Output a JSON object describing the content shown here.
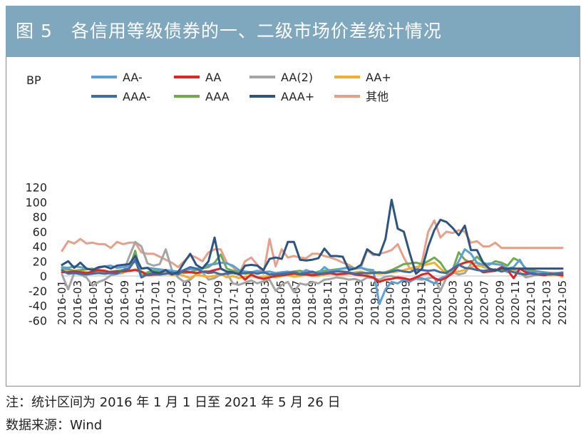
{
  "banner": {
    "figure_label": "图 5",
    "title": "各信用等级债券的一、二级市场价差统计情况"
  },
  "notes": {
    "note": "注：统计区间为 2016 年 1 月 1 日至 2021 年 5 月 26 日",
    "source": "数据来源：Wind"
  },
  "chart_data": {
    "type": "line",
    "title": "各信用等级债券的一、二级市场价差统计情况",
    "ylabel": "BP",
    "xlabel": "",
    "ylim": [
      -60,
      120
    ],
    "yticks": [
      120,
      100,
      80,
      60,
      40,
      20,
      0,
      -20,
      -40,
      -60
    ],
    "grid": false,
    "legend_position": "top",
    "x_tick_labels": [
      "2016-01",
      "2016-03",
      "2016-05",
      "2016-07",
      "2016-09",
      "2016-11",
      "2017-01",
      "2017-03",
      "2017-05",
      "2017-07",
      "2017-09",
      "2017-11",
      "2018-01",
      "2018-03",
      "2018-05",
      "2018-07",
      "2018-09",
      "2018-11",
      "2019-01",
      "2019-03",
      "2019-05",
      "2019-07",
      "2019-09",
      "2019-11",
      "2020-01",
      "2020-03",
      "2020-05",
      "2020-07",
      "2020-09",
      "2020-11",
      "2021-01",
      "2021-03",
      "2021-05"
    ],
    "series": [
      {
        "name": "AA-",
        "color": "#5aa0d2",
        "values": [
          12,
          11,
          13,
          12,
          10,
          8,
          11,
          13,
          14,
          11,
          12,
          13,
          20,
          10,
          11,
          10,
          9,
          8,
          7,
          6,
          8,
          9,
          10,
          11,
          15,
          16,
          18,
          17,
          14,
          8,
          6,
          5,
          7,
          5,
          6,
          4,
          5,
          6,
          4,
          3,
          8,
          5,
          4,
          12,
          6,
          8,
          10,
          11,
          10,
          11,
          9,
          8,
          -38,
          -18,
          -8,
          -10,
          -5,
          -8,
          -2,
          -3,
          -6,
          -10,
          -3,
          0,
          5,
          20,
          36,
          30,
          18,
          15,
          17,
          16,
          15,
          10,
          12,
          22,
          8,
          5,
          6,
          5,
          4,
          3,
          2
        ]
      },
      {
        "name": "AA",
        "color": "#e02424",
        "values": [
          5,
          5,
          6,
          5,
          4,
          6,
          8,
          7,
          5,
          6,
          6,
          7,
          8,
          6,
          1,
          2,
          2,
          3,
          4,
          4,
          6,
          5,
          4,
          6,
          6,
          8,
          10,
          6,
          4,
          3,
          -5,
          2,
          -2,
          -4,
          -2,
          0,
          1,
          2,
          3,
          2,
          2,
          1,
          2,
          3,
          4,
          2,
          3,
          4,
          2,
          1,
          0,
          -2,
          -8,
          -5,
          -4,
          -2,
          -3,
          -5,
          -2,
          2,
          4,
          -3,
          -6,
          -2,
          4,
          15,
          18,
          20,
          10,
          5,
          6,
          7,
          12,
          8,
          -3,
          10,
          5,
          3,
          2,
          1,
          3,
          2,
          1
        ]
      },
      {
        "name": "AA(2)",
        "color": "#a5a5a5",
        "values": [
          2,
          -18,
          4,
          2,
          -2,
          -13,
          -8,
          -5,
          1,
          3,
          4,
          26,
          46,
          40,
          17,
          14,
          16,
          36,
          8,
          -2,
          -8,
          -5,
          2,
          5,
          -5,
          -3,
          2,
          4,
          -10,
          -12,
          -9,
          -6,
          -10,
          -7,
          -5,
          -20,
          -12,
          -8,
          -22,
          -10,
          -12,
          -8,
          -10,
          -5,
          -4,
          -2,
          -3,
          -5,
          -4,
          -7,
          -2,
          -3,
          -5,
          -1,
          0,
          -3,
          -5,
          -7,
          -4,
          -5,
          -3,
          -2,
          -20,
          -2,
          5,
          2,
          4,
          16,
          18,
          12,
          10,
          8,
          9,
          5,
          8,
          5,
          -2,
          0,
          2,
          3,
          3,
          4,
          5
        ]
      },
      {
        "name": "AA+",
        "color": "#f0b02c",
        "values": [
          8,
          6,
          5,
          6,
          5,
          4,
          5,
          6,
          4,
          5,
          5,
          7,
          9,
          6,
          3,
          4,
          4,
          5,
          1,
          3,
          0,
          -3,
          2,
          0,
          -1,
          0,
          3,
          -2,
          0,
          -3,
          -1,
          0,
          -2,
          -1,
          0,
          -2,
          0,
          1,
          -1,
          0,
          2,
          0,
          0,
          2,
          3,
          2,
          2,
          3,
          5,
          6,
          3,
          4,
          3,
          4,
          5,
          6,
          8,
          10,
          12,
          14,
          16,
          18,
          10,
          3,
          5,
          6,
          8,
          12,
          14,
          13,
          10,
          8,
          9,
          10,
          6,
          4,
          2,
          3,
          3,
          2,
          1,
          2,
          -1
        ]
      },
      {
        "name": "AAA-",
        "color": "#3f6ea6",
        "values": [
          8,
          3,
          4,
          3,
          2,
          3,
          4,
          3,
          4,
          3,
          8,
          10,
          22,
          -2,
          2,
          4,
          2,
          3,
          5,
          2,
          8,
          12,
          10,
          6,
          4,
          5,
          2,
          3,
          4,
          3,
          4,
          5,
          3,
          5,
          2,
          2,
          3,
          4,
          5,
          3,
          4,
          6,
          3,
          4,
          5,
          6,
          6,
          5,
          3,
          4,
          4,
          4,
          5,
          4,
          6,
          8,
          6,
          5,
          9,
          8,
          7,
          8,
          5,
          4,
          10,
          15,
          11,
          10,
          8,
          7,
          8,
          9,
          6,
          8,
          5,
          3,
          2,
          4,
          2,
          3,
          2,
          3,
          4
        ]
      },
      {
        "name": "AAA",
        "color": "#70a94e",
        "values": [
          11,
          9,
          7,
          8,
          9,
          10,
          7,
          5,
          6,
          7,
          8,
          10,
          34,
          0,
          5,
          7,
          6,
          8,
          3,
          6,
          4,
          5,
          8,
          10,
          12,
          18,
          29,
          10,
          7,
          6,
          3,
          4,
          5,
          6,
          2,
          4,
          3,
          5,
          6,
          7,
          5,
          3,
          6,
          7,
          8,
          9,
          10,
          12,
          10,
          11,
          8,
          6,
          4,
          5,
          8,
          12,
          16,
          17,
          18,
          16,
          20,
          25,
          18,
          6,
          8,
          32,
          22,
          18,
          26,
          18,
          15,
          20,
          18,
          14,
          24,
          20,
          10,
          8,
          6,
          5,
          4,
          4,
          3
        ]
      },
      {
        "name": "AAA+",
        "color": "#2e5580",
        "values": [
          15,
          20,
          11,
          18,
          10,
          8,
          12,
          13,
          10,
          14,
          15,
          16,
          27,
          10,
          11,
          5,
          4,
          8,
          2,
          5,
          18,
          30,
          15,
          10,
          20,
          52,
          10,
          6,
          5,
          2,
          14,
          15,
          14,
          8,
          23,
          25,
          23,
          46,
          46,
          22,
          21,
          22,
          24,
          37,
          27,
          27,
          26,
          8,
          10,
          15,
          36,
          30,
          28,
          50,
          103,
          64,
          60,
          30,
          3,
          10,
          40,
          62,
          76,
          73,
          65,
          55,
          68,
          35,
          35,
          18,
          10,
          7,
          10,
          10,
          10,
          10,
          10,
          10,
          10,
          10,
          10,
          10,
          10
        ]
      },
      {
        "name": "其他",
        "color": "#e6a08a",
        "values": [
          34,
          47,
          44,
          50,
          44,
          45,
          43,
          43,
          38,
          46,
          43,
          45,
          45,
          32,
          30,
          30,
          26,
          22,
          18,
          12,
          20,
          28,
          25,
          20,
          32,
          36,
          36,
          18,
          12,
          3,
          20,
          25,
          15,
          3,
          50,
          13,
          36,
          25,
          27,
          25,
          24,
          30,
          30,
          27,
          25,
          22,
          18,
          15,
          10,
          12,
          35,
          28,
          30,
          32,
          35,
          43,
          25,
          10,
          5,
          20,
          60,
          75,
          52,
          60,
          58,
          62,
          60,
          45,
          47,
          40,
          40,
          45,
          38,
          38,
          38,
          38,
          38,
          38,
          38,
          38,
          38,
          38,
          38
        ]
      }
    ]
  }
}
